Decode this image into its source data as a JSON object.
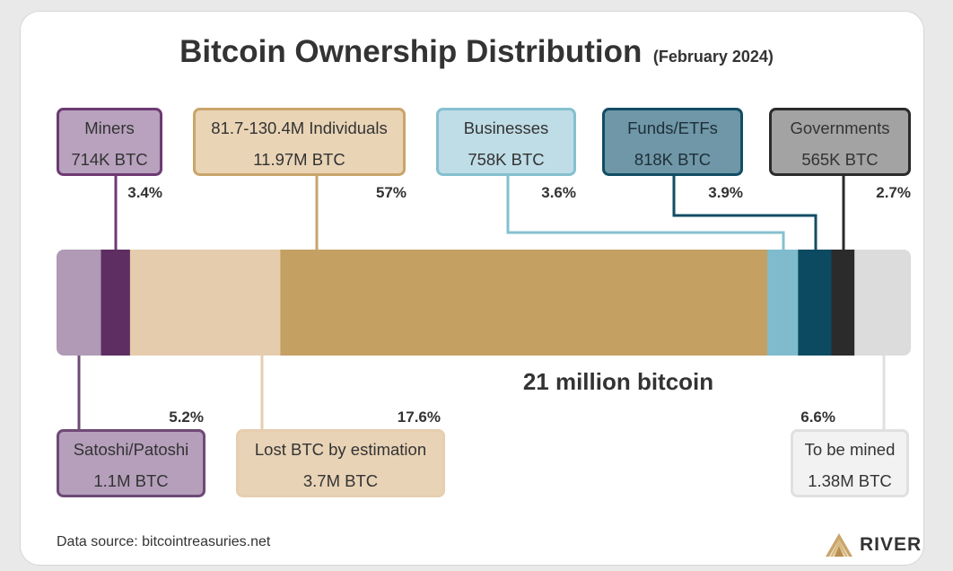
{
  "header": {
    "title": "Bitcoin Ownership Distribution",
    "subtitle": "(February 2024)"
  },
  "footer": {
    "source": "Data source: bitcointreasuries.net",
    "brand": "RIVER",
    "brand_icon": "river-mountain-icon"
  },
  "chart_data": {
    "type": "bar",
    "orientation": "horizontal-stacked",
    "total_label": "21 million bitcoin",
    "unit": "BTC",
    "segments": [
      {
        "name": "Satoshi/Patoshi",
        "value_label": "1.1M BTC",
        "value": 1.1,
        "percent_label": "5.2%",
        "percent": 5.2,
        "color": "#b09ab5",
        "border": "#6e4a76",
        "box_fill": "#b59fbb",
        "text_color": "#333333",
        "placement": "below"
      },
      {
        "name": "Miners",
        "value_label": "714K BTC",
        "value": 0.714,
        "percent_label": "3.4%",
        "percent": 3.4,
        "color": "#5e2e62",
        "border": "#6e3a72",
        "box_fill": "#b8a2be",
        "text_color": "#333333",
        "placement": "above"
      },
      {
        "name": "Lost BTC by estimation",
        "value_label": "3.7M BTC",
        "value": 3.7,
        "percent_label": "17.6%",
        "percent": 17.6,
        "color": "#e4ccac",
        "border": "#e6ceb0",
        "box_fill": "#e8d3b6",
        "text_color": "#333333",
        "placement": "below"
      },
      {
        "name": "81.7-130.4M Individuals",
        "value_label": "11.97M BTC",
        "value": 11.97,
        "percent_label": "57%",
        "percent": 57,
        "color": "#c4a063",
        "border": "#c9a56b",
        "box_fill": "#e9d4b6",
        "text_color": "#333333",
        "placement": "above"
      },
      {
        "name": "Businesses",
        "value_label": "758K BTC",
        "value": 0.758,
        "percent_label": "3.6%",
        "percent": 3.6,
        "color": "#7fbbcc",
        "border": "#86c0cf",
        "box_fill": "#bfdde6",
        "text_color": "#333333",
        "placement": "above"
      },
      {
        "name": "Funds/ETFs",
        "value_label": "818K BTC",
        "value": 0.818,
        "percent_label": "3.9%",
        "percent": 3.9,
        "color": "#0c4a62",
        "border": "#124d63",
        "box_fill": "#6f97a7",
        "text_color": "#1d2f38",
        "placement": "above"
      },
      {
        "name": "Governments",
        "value_label": "565K BTC",
        "value": 0.565,
        "percent_label": "2.7%",
        "percent": 2.7,
        "color": "#2b2b2b",
        "border": "#2b2b2b",
        "box_fill": "#a3a3a3",
        "text_color": "#333333",
        "placement": "above"
      },
      {
        "name": "To be mined",
        "value_label": "1.38M BTC",
        "value": 1.38,
        "percent_label": "6.6%",
        "percent": 6.6,
        "color": "#dcdcdc",
        "border": "#e0e0e0",
        "box_fill": "#f2f2f2",
        "text_color": "#333333",
        "placement": "below"
      }
    ]
  }
}
